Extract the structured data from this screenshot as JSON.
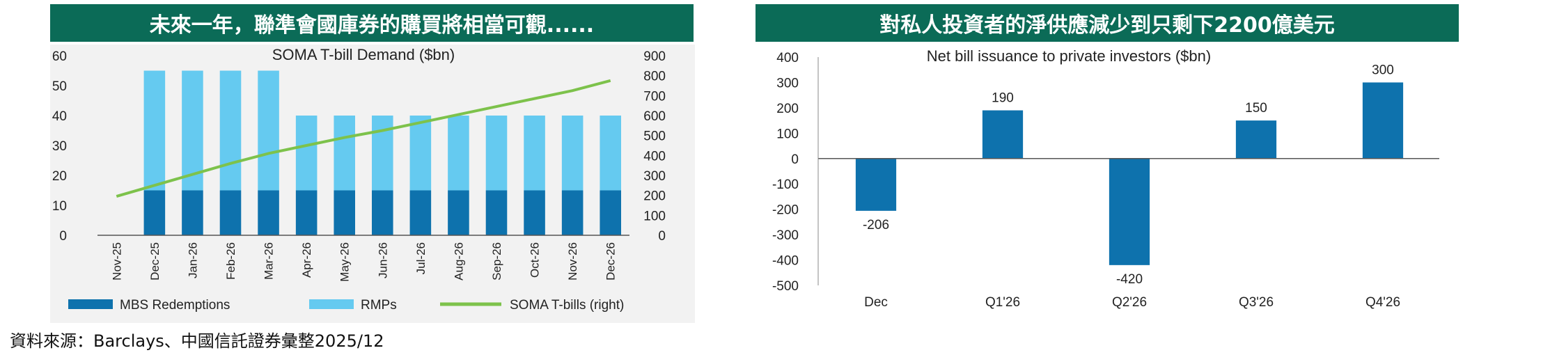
{
  "left": {
    "banner": "未來一年，聯準會國庫券的購買將相當可觀......",
    "chart_data": {
      "type": "bar",
      "title": "SOMA T-bill Demand ($bn)",
      "categories": [
        "Nov-25",
        "Dec-25",
        "Jan-26",
        "Feb-26",
        "Mar-26",
        "Apr-26",
        "May-26",
        "Jun-26",
        "Jul-26",
        "Aug-26",
        "Sep-26",
        "Oct-26",
        "Nov-26",
        "Dec-26"
      ],
      "series": [
        {
          "name": "MBS Redemptions",
          "kind": "bar",
          "stack": true,
          "axis": "left",
          "color": "#0e72ad",
          "values": [
            0,
            15,
            15,
            15,
            15,
            15,
            15,
            15,
            15,
            15,
            15,
            15,
            15,
            15
          ]
        },
        {
          "name": "RMPs",
          "kind": "bar",
          "stack": true,
          "axis": "left",
          "color": "#65caf0",
          "values": [
            0,
            40,
            40,
            40,
            40,
            25,
            25,
            25,
            25,
            25,
            25,
            25,
            25,
            25
          ]
        },
        {
          "name": "SOMA T-bills (right)",
          "kind": "line",
          "axis": "right",
          "color": "#7dc24b",
          "values": [
            195,
            250,
            305,
            360,
            410,
            450,
            490,
            525,
            565,
            605,
            645,
            685,
            725,
            775
          ]
        }
      ],
      "yticks_left": [
        0,
        10,
        20,
        30,
        40,
        50,
        60
      ],
      "yticks_right": [
        0,
        100,
        200,
        300,
        400,
        500,
        600,
        700,
        800,
        900
      ],
      "ylim_left": [
        0,
        60
      ],
      "ylim_right": [
        0,
        900
      ],
      "legend_position": "bottom"
    }
  },
  "right": {
    "banner": "對私人投資者的淨供應減少到只剩下2200億美元",
    "chart_data": {
      "type": "bar",
      "title": "Net bill issuance to private investors ($bn)",
      "categories": [
        "Dec",
        "Q1'26",
        "Q2'26",
        "Q3'26",
        "Q4'26"
      ],
      "values": [
        -206,
        190,
        -420,
        150,
        300
      ],
      "labels": [
        "-206",
        "190",
        "-420",
        "150",
        "300"
      ],
      "color": "#0e72ad",
      "yticks": [
        -500,
        -400,
        -300,
        -200,
        -100,
        0,
        100,
        200,
        300,
        400
      ],
      "ylim": [
        -500,
        400
      ]
    }
  },
  "source": "資料來源：Barclays、中國信託證券彙整2025/12"
}
